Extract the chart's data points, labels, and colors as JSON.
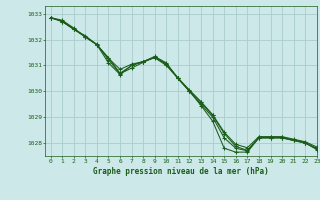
{
  "title": "Graphe pression niveau de la mer (hPa)",
  "bg_color": "#cce8e8",
  "grid_color": "#aacccc",
  "line_color": "#1a5c1a",
  "xlim": [
    -0.5,
    23
  ],
  "ylim": [
    1027.5,
    1033.3
  ],
  "yticks": [
    1028,
    1029,
    1030,
    1031,
    1032,
    1033
  ],
  "xticks": [
    0,
    1,
    2,
    3,
    4,
    5,
    6,
    7,
    8,
    9,
    10,
    11,
    12,
    13,
    14,
    15,
    16,
    17,
    18,
    19,
    20,
    21,
    22,
    23
  ],
  "series": [
    [
      1032.85,
      1032.7,
      1032.4,
      1032.1,
      1031.8,
      1031.3,
      1030.7,
      1031.0,
      1031.15,
      1031.3,
      1031.0,
      1030.5,
      1030.0,
      1029.5,
      1029.0,
      1028.2,
      1027.8,
      1027.7,
      1028.2,
      1028.2,
      1028.2,
      1028.1,
      1028.0,
      1027.8
    ],
    [
      1032.85,
      1032.7,
      1032.4,
      1032.15,
      1031.8,
      1031.28,
      1030.85,
      1031.05,
      1031.15,
      1031.32,
      1031.05,
      1030.52,
      1030.05,
      1029.6,
      1029.1,
      1028.42,
      1027.95,
      1027.82,
      1028.25,
      1028.25,
      1028.25,
      1028.15,
      1028.05,
      1027.85
    ],
    [
      1032.85,
      1032.72,
      1032.42,
      1032.12,
      1031.82,
      1031.22,
      1030.68,
      1030.9,
      1031.12,
      1031.32,
      1031.07,
      1030.52,
      1030.02,
      1029.57,
      1029.07,
      1028.37,
      1027.87,
      1027.72,
      1028.22,
      1028.22,
      1028.22,
      1028.12,
      1028.02,
      1027.77
    ],
    [
      1032.85,
      1032.75,
      1032.45,
      1032.1,
      1031.8,
      1031.1,
      1030.65,
      1031.0,
      1031.15,
      1031.35,
      1031.1,
      1030.5,
      1030.0,
      1029.45,
      1028.85,
      1027.8,
      1027.65,
      1027.65,
      1028.2,
      1028.2,
      1028.2,
      1028.1,
      1028.0,
      1027.75
    ]
  ]
}
